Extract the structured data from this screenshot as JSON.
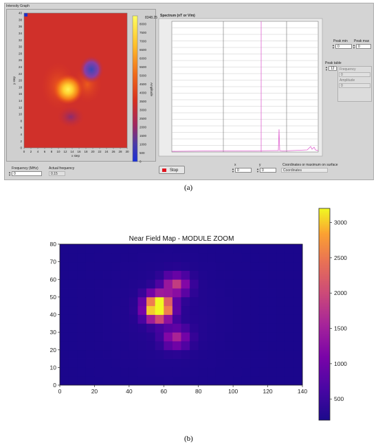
{
  "panel_a": {
    "intensity_title": "Intensity Graph",
    "x_axis_label": "x step",
    "y_axis_label": "y step",
    "x_ticks": [
      "0",
      "2",
      "4",
      "6",
      "8",
      "10",
      "12",
      "14",
      "16",
      "18",
      "20",
      "22",
      "24",
      "26",
      "28",
      "30"
    ],
    "y_ticks": [
      "40",
      "38",
      "36",
      "34",
      "32",
      "30",
      "28",
      "26",
      "24",
      "22",
      "20",
      "18",
      "16",
      "14",
      "12",
      "10",
      "8",
      "6",
      "4",
      "2",
      "0"
    ],
    "colorbar_max_label": "8348.25",
    "colorbar_ticks": [
      "8000",
      "7500",
      "7000",
      "6500",
      "6000",
      "5500",
      "5000",
      "4500",
      "4000",
      "3500",
      "3000",
      "2500",
      "2000",
      "1500",
      "1000",
      "500",
      "0"
    ],
    "colorbar_label": "Amplitude",
    "spectrum_title": "Spectrum (nT or V/m)",
    "peak_min_label": "Peak min",
    "peak_min_value": "0",
    "peak_max_label": "Peak max",
    "peak_max_value": "0",
    "peak_table_label": "Peak table",
    "peak_table_index": "12",
    "frequency_col_label": "Frequency",
    "frequency_col_value": "0",
    "amplitude_col_label": "Amplitude",
    "amplitude_col_value": "0",
    "frequency_mhz_label": "Frequency (MHz)",
    "frequency_mhz_value": "0",
    "actual_frequency_label": "Actual frequency",
    "actual_frequency_value": "0.15",
    "stop_label": "Stop",
    "x_label": "x",
    "x_value": "0",
    "y_label": "y",
    "y_value": "0",
    "coords_label": "Coordinates or maximum on surface",
    "coords_value": "Coordinates"
  },
  "caption_a": "(a)",
  "caption_b": "(b)",
  "chart_data": {
    "type": "heatmap",
    "title": "Near Field Map - MODULE ZOOM",
    "xlim": [
      0,
      140
    ],
    "ylim": [
      0,
      80
    ],
    "x_ticks": [
      0,
      20,
      40,
      60,
      80,
      100,
      120,
      140
    ],
    "y_ticks": [
      0,
      10,
      20,
      30,
      40,
      50,
      60,
      70,
      80
    ],
    "colorbar_range": [
      200,
      3200
    ],
    "colorbar_ticks": [
      500,
      1000,
      1500,
      2000,
      2500,
      3000
    ],
    "colormap": "plasma",
    "hotspots": [
      {
        "x": 57,
        "y": 42,
        "value": 3200
      },
      {
        "x": 57,
        "y": 47,
        "value": 2600
      },
      {
        "x": 67,
        "y": 57,
        "value": 1800
      },
      {
        "x": 67,
        "y": 27,
        "value": 1500
      }
    ]
  }
}
